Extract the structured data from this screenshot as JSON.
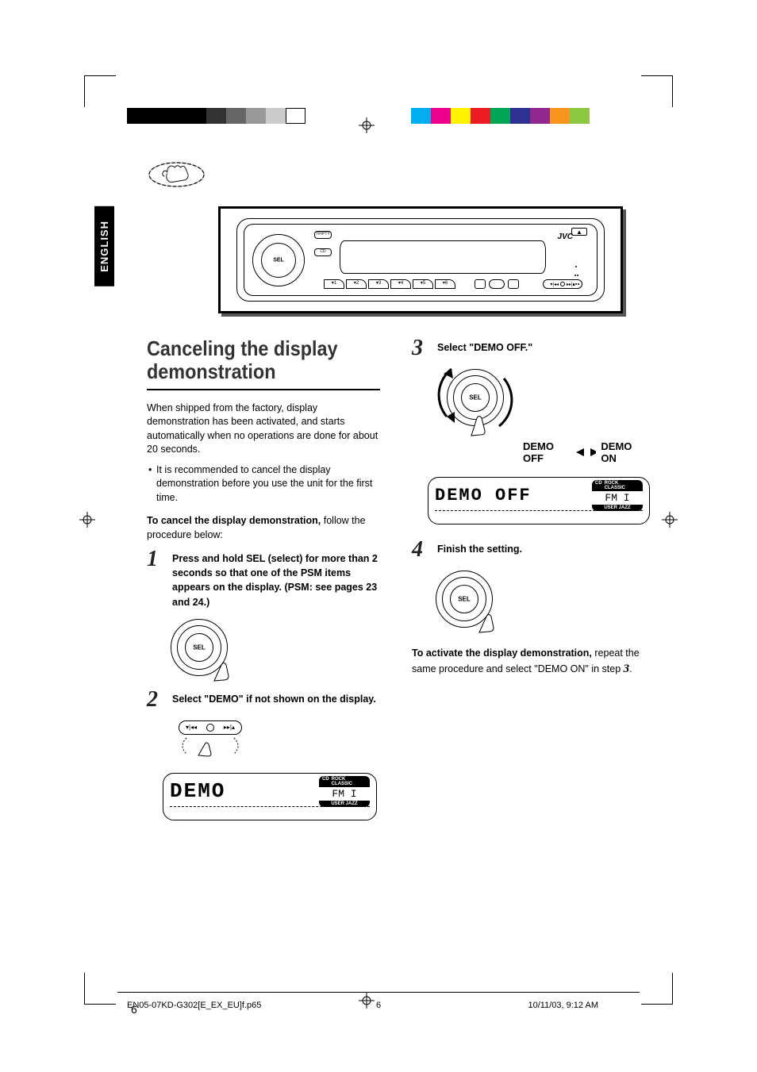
{
  "lang_tab": "ENGLISH",
  "color_bars": {
    "left": [
      "#000000",
      "#000000",
      "#000000",
      "#000000",
      "#333333",
      "#666666",
      "#999999",
      "#cccccc",
      "#ffffff"
    ],
    "right": [
      "#00aeef",
      "#ec008c",
      "#fff200",
      "#ed1c24",
      "#00a651",
      "#2e3192",
      "#92278f",
      "#f7941d",
      "#8dc63f"
    ]
  },
  "stereo": {
    "brand": "JVC",
    "sel": "SEL",
    "preset_count": 6,
    "eject": "▲",
    "btn_left1": "TP/PTY",
    "btn_left2": "CD",
    "skip": "▸▸|/|◂◂"
  },
  "heading": "Canceling the display demonstration",
  "intro1": "When shipped from the factory, display demonstration has been activated, and starts automatically when no operations are done for about 20 seconds.",
  "intro_bullet": "It is recommended to cancel the display demonstration before you use the unit for the first time.",
  "intro2_bold": "To cancel the display demonstration,",
  "intro2_rest": " follow the procedure below:",
  "steps": {
    "s1_num": "1",
    "s1": "Press and hold SEL (select) for more than 2 seconds so that one of the PSM items appears on the display. (PSM: see pages 23 and 24.)",
    "s2_num": "2",
    "s2": "Select \"DEMO\" if not shown on the display.",
    "s3_num": "3",
    "s3": "Select \"DEMO OFF.\"",
    "s4_num": "4",
    "s4": "Finish the setting."
  },
  "sel_label": "SEL",
  "lcd": {
    "demo": "DEMO",
    "demo_off": "DEMO  OFF",
    "fm": "FM I",
    "badge_top1": "CD",
    "badge_top2": "ROCK CLASSIC",
    "badge_bot": "USER   JAZZ"
  },
  "toggle": {
    "off": "DEMO OFF",
    "on": "DEMO ON"
  },
  "activate_bold": "To activate the display demonstration,",
  "activate_rest": " repeat the same procedure and select \"DEMO ON\" in step ",
  "activate_step": "3",
  "activate_period": ".",
  "page_number": "6",
  "footer": {
    "file": "EN05-07KD-G302[E_EX_EU]f.p65",
    "page": "6",
    "timestamp": "10/11/03, 9:12 AM"
  }
}
